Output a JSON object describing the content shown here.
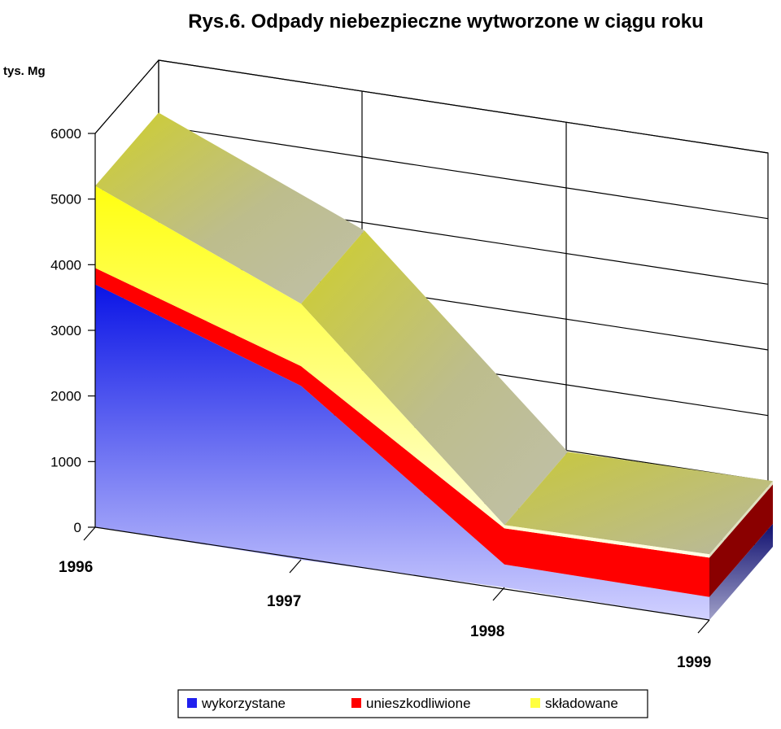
{
  "chart_data": {
    "type": "area",
    "stacked": true,
    "three_d": true,
    "title": "Rys.6. Odpady niebezpieczne wytworzone w ciągu roku",
    "ylabel": "tys. Mg",
    "xlabel": "",
    "categories": [
      "1996",
      "1997",
      "1998",
      "1999"
    ],
    "ylim": [
      0,
      6000
    ],
    "yticks": [
      "0",
      "1000",
      "2000",
      "3000",
      "4000",
      "5000",
      "6000"
    ],
    "series": [
      {
        "name": "wykorzystane",
        "values": [
          3700,
          2650,
          350,
          350
        ],
        "color": "#1f1ff0"
      },
      {
        "name": "unieszkodliwione",
        "values": [
          250,
          300,
          550,
          600
        ],
        "color": "#ff0000"
      },
      {
        "name": "składowane",
        "values": [
          1250,
          950,
          50,
          50
        ],
        "color": "#ffff40"
      }
    ],
    "grid": true,
    "legend_position": "bottom"
  }
}
